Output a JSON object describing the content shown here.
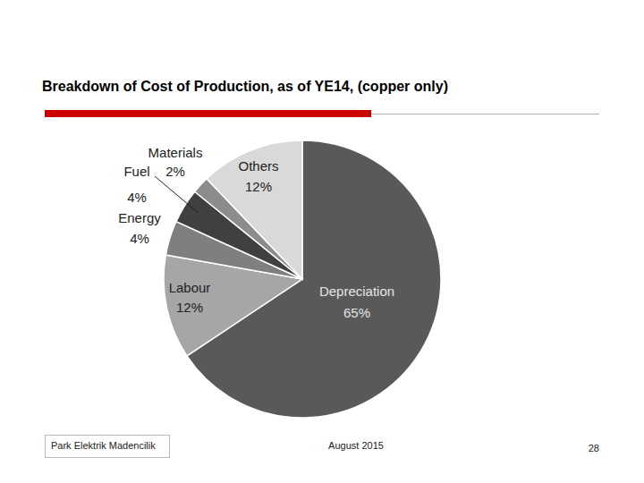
{
  "chart_data": {
    "type": "pie",
    "title": "Breakdown of Cost of Production, as of YE14, (copper only)",
    "categories": [
      "Depreciation",
      "Labour",
      "Energy",
      "Fuel",
      "Materials",
      "Others"
    ],
    "values": [
      65,
      12,
      4,
      4,
      2,
      12
    ],
    "value_labels": [
      "65%",
      "12%",
      "4%",
      "4%",
      "2%",
      "12%"
    ],
    "colors": [
      "#595959",
      "#a6a6a6",
      "#7f7f7f",
      "#404040",
      "#8c8c8c",
      "#d9d9d9"
    ],
    "data_labels": true
  },
  "footer": {
    "left": "Park Elektrik Madencilik",
    "center": "August 2015",
    "page": 28
  }
}
